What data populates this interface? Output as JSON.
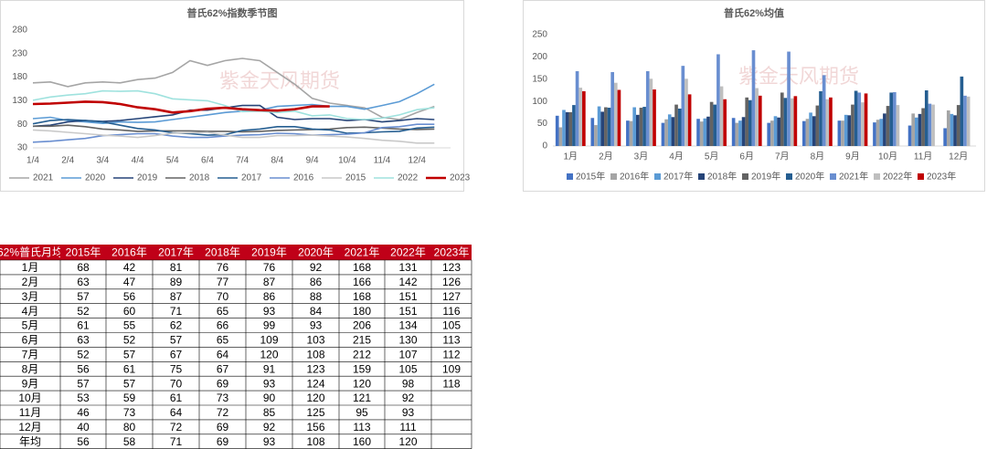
{
  "watermark": "紫金天风期货",
  "chart_data": [
    {
      "type": "line",
      "title": "普氏62%指数季节图",
      "categories": [
        "1/4",
        null,
        "2/4",
        null,
        "3/4",
        null,
        "4/4",
        null,
        "5/4",
        null,
        "6/4",
        null,
        "7/4",
        null,
        "8/4",
        null,
        "9/4",
        null,
        "10/4",
        null,
        "11/4",
        null,
        "12/4",
        null
      ],
      "ylim": [
        30,
        280
      ],
      "yticks": [
        30,
        80,
        130,
        180,
        230,
        280
      ],
      "grid": false,
      "series": [
        {
          "name": "2021",
          "color": "#a5a5a5",
          "values": [
            168,
            170,
            160,
            168,
            170,
            168,
            175,
            178,
            190,
            215,
            205,
            215,
            220,
            215,
            190,
            165,
            135,
            125,
            120,
            115,
            95,
            90,
            105,
            118
          ]
        },
        {
          "name": "2020",
          "color": "#5b9bd5",
          "values": [
            92,
            95,
            88,
            85,
            82,
            85,
            84,
            85,
            90,
            95,
            100,
            105,
            108,
            110,
            118,
            120,
            122,
            118,
            118,
            112,
            120,
            128,
            145,
            165
          ]
        },
        {
          "name": "2019",
          "color": "#264478",
          "values": [
            76,
            78,
            85,
            88,
            86,
            88,
            92,
            96,
            100,
            110,
            110,
            115,
            120,
            120,
            95,
            90,
            92,
            92,
            88,
            90,
            85,
            88,
            92,
            90
          ]
        },
        {
          "name": "2018",
          "color": "#636363",
          "values": [
            76,
            76,
            78,
            75,
            70,
            68,
            65,
            66,
            66,
            66,
            65,
            65,
            64,
            65,
            67,
            68,
            69,
            70,
            73,
            74,
            72,
            70,
            69,
            70
          ]
        },
        {
          "name": "2017",
          "color": "#255e91",
          "values": [
            81,
            88,
            90,
            88,
            85,
            78,
            71,
            68,
            62,
            60,
            57,
            58,
            67,
            70,
            75,
            75,
            70,
            68,
            61,
            62,
            64,
            65,
            72,
            74
          ]
        },
        {
          "name": "2016",
          "color": "#698ed0",
          "values": [
            42,
            44,
            47,
            50,
            56,
            58,
            60,
            60,
            55,
            52,
            52,
            55,
            57,
            58,
            61,
            60,
            57,
            58,
            59,
            62,
            73,
            75,
            80,
            80
          ]
        },
        {
          "name": "2015",
          "color": "#c9c9c9",
          "values": [
            68,
            66,
            63,
            60,
            57,
            55,
            52,
            56,
            61,
            62,
            63,
            57,
            52,
            52,
            56,
            56,
            57,
            55,
            53,
            50,
            46,
            44,
            40,
            40
          ]
        },
        {
          "name": "2022",
          "color": "#9fe2de",
          "values": [
            131,
            138,
            142,
            145,
            151,
            150,
            151,
            145,
            134,
            132,
            130,
            120,
            107,
            108,
            105,
            108,
            98,
            100,
            92,
            90,
            93,
            100,
            111,
            115
          ]
        },
        {
          "name": "2023",
          "color": "#c00000",
          "values": [
            123,
            124,
            126,
            128,
            127,
            123,
            116,
            112,
            105,
            108,
            113,
            115,
            112,
            110,
            109,
            112,
            118,
            118,
            null,
            null,
            null,
            null,
            null,
            null
          ]
        }
      ]
    },
    {
      "type": "bar",
      "title": "普氏62%均值",
      "categories": [
        "1月",
        "2月",
        "3月",
        "4月",
        "5月",
        "6月",
        "7月",
        "8月",
        "9月",
        "10月",
        "11月",
        "12月"
      ],
      "ylim": [
        0,
        250
      ],
      "yticks": [
        0,
        50,
        100,
        150,
        200,
        250
      ],
      "series": [
        {
          "name": "2015年",
          "color": "#4472c4",
          "values": [
            68,
            63,
            57,
            52,
            61,
            63,
            52,
            56,
            57,
            53,
            46,
            40
          ]
        },
        {
          "name": "2016年",
          "color": "#a5a5a5",
          "values": [
            42,
            47,
            56,
            60,
            55,
            52,
            57,
            61,
            57,
            59,
            73,
            80
          ]
        },
        {
          "name": "2017年",
          "color": "#5b9bd5",
          "values": [
            81,
            89,
            87,
            71,
            62,
            57,
            67,
            75,
            70,
            61,
            64,
            72
          ]
        },
        {
          "name": "2018年",
          "color": "#264478",
          "values": [
            76,
            77,
            70,
            65,
            66,
            65,
            64,
            67,
            69,
            73,
            72,
            69
          ]
        },
        {
          "name": "2019年",
          "color": "#636363",
          "values": [
            76,
            87,
            86,
            93,
            99,
            109,
            120,
            91,
            93,
            90,
            85,
            92
          ]
        },
        {
          "name": "2020年",
          "color": "#255e91",
          "values": [
            92,
            86,
            88,
            84,
            93,
            103,
            108,
            123,
            124,
            120,
            125,
            156
          ]
        },
        {
          "name": "2021年",
          "color": "#698ed0",
          "values": [
            168,
            166,
            168,
            180,
            206,
            215,
            212,
            159,
            120,
            121,
            95,
            113
          ]
        },
        {
          "name": "2022年",
          "color": "#bfbfbf",
          "values": [
            131,
            142,
            151,
            151,
            134,
            130,
            107,
            105,
            98,
            92,
            93,
            111
          ]
        },
        {
          "name": "2023年",
          "color": "#c00000",
          "values": [
            123,
            126,
            127,
            116,
            105,
            113,
            112,
            109,
            118,
            null,
            null,
            null
          ]
        }
      ]
    }
  ],
  "table": {
    "header": [
      "62%普氏月均",
      "2015年",
      "2016年",
      "2017年",
      "2018年",
      "2019年",
      "2020年",
      "2021年",
      "2022年",
      "2023年"
    ],
    "rows": [
      [
        "1月",
        68,
        42,
        81,
        76,
        76,
        92,
        168,
        131,
        123
      ],
      [
        "2月",
        63,
        47,
        89,
        77,
        87,
        86,
        166,
        142,
        126
      ],
      [
        "3月",
        57,
        56,
        87,
        70,
        86,
        88,
        168,
        151,
        127
      ],
      [
        "4月",
        52,
        60,
        71,
        65,
        93,
        84,
        180,
        151,
        116
      ],
      [
        "5月",
        61,
        55,
        62,
        66,
        99,
        93,
        206,
        134,
        105
      ],
      [
        "6月",
        63,
        52,
        57,
        65,
        109,
        103,
        215,
        130,
        113
      ],
      [
        "7月",
        52,
        57,
        67,
        64,
        120,
        108,
        212,
        107,
        112
      ],
      [
        "8月",
        56,
        61,
        75,
        67,
        91,
        123,
        159,
        105,
        109
      ],
      [
        "9月",
        57,
        57,
        70,
        69,
        93,
        124,
        120,
        98,
        118
      ],
      [
        "10月",
        53,
        59,
        61,
        73,
        90,
        120,
        121,
        92,
        null
      ],
      [
        "11月",
        46,
        73,
        64,
        72,
        85,
        125,
        95,
        93,
        null
      ],
      [
        "12月",
        40,
        80,
        72,
        69,
        92,
        156,
        113,
        111,
        null
      ],
      [
        "年均",
        56,
        58,
        71,
        69,
        93,
        108,
        160,
        120,
        null
      ]
    ]
  }
}
